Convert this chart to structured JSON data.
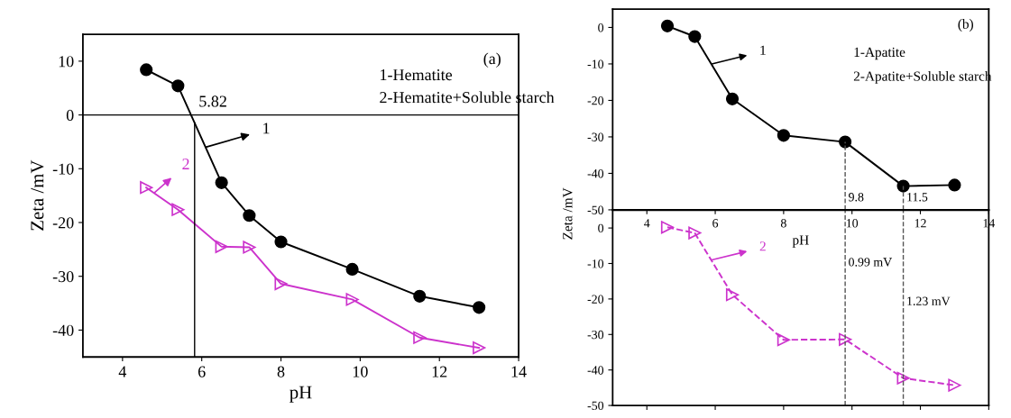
{
  "chart_data": [
    {
      "type": "line",
      "xlabel": "pH",
      "ylabel": "Zeta /mV",
      "xlim": [
        3,
        14
      ],
      "xticks": [
        4,
        6,
        8,
        10,
        12,
        14
      ],
      "ylim": [
        -45,
        15
      ],
      "yticks": [
        -40,
        -30,
        -20,
        -10,
        0,
        10
      ],
      "grid": false,
      "legend": false,
      "line_style": "solid",
      "x": [
        4.6,
        5.4,
        6.5,
        7.2,
        8,
        9.8,
        11.5,
        13
      ],
      "series": [
        {
          "color": "#000000",
          "marker": "circle",
          "values": [
            8.4,
            5.4,
            -12.6,
            -18.7,
            -23.6,
            -28.7,
            -33.7,
            -35.8
          ]
        },
        {
          "color": "#cc33cc",
          "marker": "triangle",
          "values": [
            -13.5,
            -17.6,
            -24.5,
            -24.6,
            -31.4,
            -34.3,
            -41.4,
            -43.3
          ]
        }
      ],
      "ref_lines": [
        {
          "axis": "x",
          "value": 5.82,
          "label": "5.82",
          "color": "#000000",
          "line_style": "solid"
        },
        {
          "axis": "y",
          "value": 0,
          "color": "#000000",
          "line_style": "solid"
        }
      ],
      "annotations": [
        "(a)",
        "1-Hematite",
        "2-Hematite+Soluble starch",
        {
          "text": "1",
          "x": 6.1,
          "y": -6
        },
        {
          "text": "2",
          "x": 4.8,
          "y": -14.5
        }
      ]
    },
    {
      "type": "line",
      "xlabel": "pH",
      "ylabel": "Zeta /mV",
      "xlim": [
        3,
        14
      ],
      "xticks": [
        4,
        6,
        8,
        10,
        12,
        14
      ],
      "ylim": [
        -50,
        5
      ],
      "yticks": [
        -50,
        -40,
        -30,
        -20,
        -10,
        0
      ],
      "grid": false,
      "legend": false,
      "line_style": "solid",
      "x": [
        4.6,
        5.4,
        6.5,
        8,
        9.8,
        11.5,
        13
      ],
      "series": [
        {
          "color": "#000000",
          "marker": "circle",
          "values": [
            0.4,
            -2.5,
            -19.6,
            -29.6,
            -31.4,
            -43.5,
            -43.2
          ]
        }
      ],
      "ref_lines": [
        {
          "axis": "x",
          "value": 9.8,
          "label": "9.8",
          "color": "#555555",
          "line_style": "dashed"
        },
        {
          "axis": "x",
          "value": 11.5,
          "label": "11.5",
          "color": "#555555",
          "line_style": "dashed"
        }
      ],
      "annotations": [
        "(b)",
        "1-Apatite",
        "2-Apatite+Soluble starch",
        {
          "text": "1",
          "x": 5.9,
          "y": -10
        }
      ]
    },
    {
      "type": "line",
      "xlim": [
        3,
        14
      ],
      "xticks": [
        4,
        6,
        8,
        10,
        12,
        14
      ],
      "ylim": [
        -50,
        5
      ],
      "yticks": [
        -50,
        -40,
        -30,
        -20,
        -10,
        0
      ],
      "grid": false,
      "legend": false,
      "tick_labels": "y",
      "line_style": "dashed",
      "x": [
        4.6,
        5.4,
        6.5,
        8,
        9.8,
        11.5,
        13
      ],
      "series": [
        {
          "color": "#cc33cc",
          "marker": "triangle",
          "values": [
            0.2,
            -1.4,
            -18.8,
            -31.5,
            -31.4,
            -42.3,
            -44.3
          ]
        }
      ],
      "ref_lines": [
        {
          "axis": "x",
          "value": 9.8,
          "label": "0.99 mV",
          "color": "#555555",
          "line_style": "dashed"
        },
        {
          "axis": "x",
          "value": 11.5,
          "label": "1.23 mV",
          "color": "#555555",
          "line_style": "dashed"
        }
      ],
      "annotations": [
        {
          "text": "2",
          "x": 5.9,
          "y": -9
        }
      ]
    }
  ]
}
